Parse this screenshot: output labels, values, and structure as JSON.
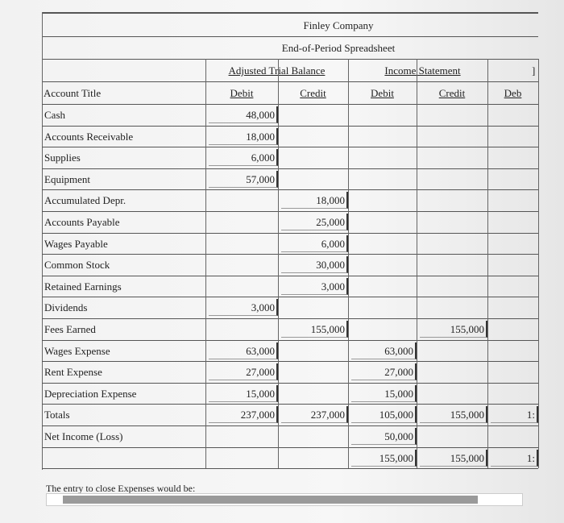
{
  "header": {
    "company": "Finley Company",
    "title": "End-of-Period Spreadsheet",
    "groups": [
      "Adjusted Trial Balance",
      "Income Statement",
      "]"
    ],
    "columns": [
      "Account Title",
      "Debit",
      "Credit",
      "Debit",
      "Credit",
      "Deb"
    ]
  },
  "table": {
    "rows": [
      [
        "Cash",
        "48,000",
        null,
        null,
        null,
        null
      ],
      [
        "Accounts Receivable",
        "18,000",
        null,
        null,
        null,
        null
      ],
      [
        "Supplies",
        "6,000",
        null,
        null,
        null,
        null
      ],
      [
        "Equipment",
        "57,000",
        null,
        null,
        null,
        null
      ],
      [
        "Accumulated Depr.",
        null,
        "18,000",
        null,
        null,
        null
      ],
      [
        "Accounts Payable",
        null,
        "25,000",
        null,
        null,
        null
      ],
      [
        "Wages Payable",
        null,
        "6,000",
        null,
        null,
        null
      ],
      [
        "Common Stock",
        null,
        "30,000",
        null,
        null,
        null
      ],
      [
        "Retained Earnings",
        null,
        "3,000",
        null,
        null,
        null
      ],
      [
        "Dividends",
        "3,000",
        null,
        null,
        null,
        null
      ],
      [
        "Fees Earned",
        null,
        "155,000",
        null,
        "155,000",
        null
      ],
      [
        "Wages Expense",
        "63,000",
        null,
        "63,000",
        null,
        null
      ],
      [
        "Rent Expense",
        "27,000",
        null,
        "27,000",
        null,
        null
      ],
      [
        "Depreciation Expense",
        "15,000",
        null,
        "15,000",
        null,
        null
      ],
      [
        "Totals",
        "237,000",
        "237,000",
        "105,000",
        "155,000",
        "1:"
      ],
      [
        "Net Income (Loss)",
        null,
        null,
        "50,000",
        null,
        null
      ],
      [
        null,
        null,
        null,
        "155,000",
        "155,000",
        "1:"
      ]
    ]
  },
  "footer": {
    "prompt": "The entry to close Expenses would be:"
  }
}
